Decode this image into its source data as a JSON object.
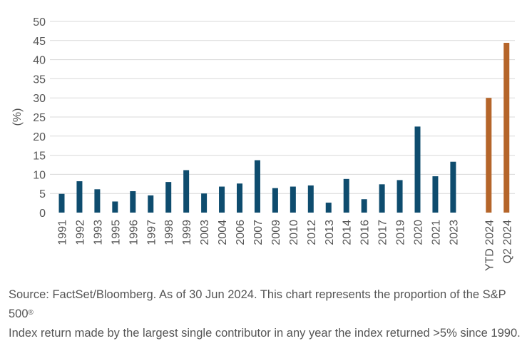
{
  "chart_data": {
    "type": "bar",
    "ylabel": "(%)",
    "xlabel": "",
    "ylim": [
      0,
      50
    ],
    "yticks": [
      0,
      5,
      10,
      15,
      20,
      25,
      30,
      35,
      40,
      45,
      50
    ],
    "grid": "horizontal",
    "categories": [
      "1991",
      "1992",
      "1993",
      "1995",
      "1996",
      "1997",
      "1998",
      "1999",
      "2003",
      "2004",
      "2006",
      "2007",
      "2009",
      "2010",
      "2012",
      "2013",
      "2014",
      "2016",
      "2017",
      "2019",
      "2020",
      "2021",
      "2023",
      "YTD 2024",
      "Q2 2024"
    ],
    "values": [
      4.9,
      8.2,
      6.1,
      2.9,
      5.6,
      4.5,
      8.0,
      11.1,
      5.0,
      6.8,
      7.6,
      13.7,
      6.4,
      6.8,
      7.1,
      2.6,
      8.8,
      3.5,
      7.4,
      8.5,
      22.5,
      9.5,
      13.3,
      30.0,
      44.4
    ],
    "colors": {
      "annual": "#0e4c6e",
      "2024": "#b5652a",
      "grid": "#d9d9d9"
    }
  },
  "source": {
    "line1": "Source: FactSet/Bloomberg. As of 30 Jun 2024. This chart represents the proportion of the S&P 500",
    "registered_mark": "®",
    "line2": "Index return made by the largest single contributor in any year the index returned >5% since 1990."
  }
}
